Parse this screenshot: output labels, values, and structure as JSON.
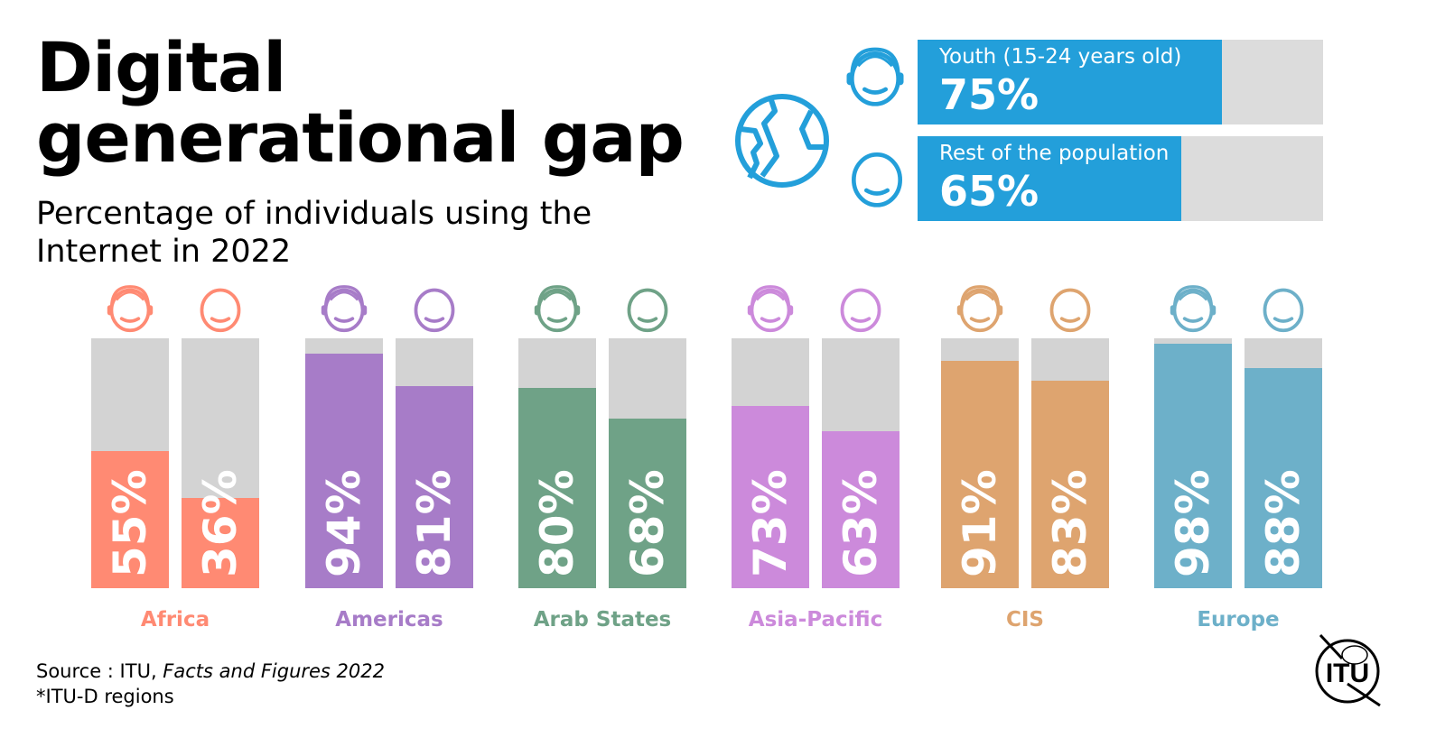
{
  "title_line1": "Digital",
  "title_line2": "generational gap",
  "subtitle": "Percentage of individuals using the Internet in 2022",
  "icons": {
    "globe": "globe-icon",
    "youth": "youth-headphones-icon",
    "rest": "person-face-icon",
    "logo": "itu-logo"
  },
  "logo_text": "ITU",
  "source_prefix": "Source : ITU, ",
  "source_title": "Facts and Figures 2022",
  "footnote": "*ITU-D regions",
  "chart_data": [
    {
      "type": "bar",
      "orientation": "horizontal",
      "ylim": [
        0,
        100
      ],
      "color": "#239FDA",
      "series": [
        {
          "name": "Youth (15-24 years old)",
          "value": 75,
          "label": "75%"
        },
        {
          "name": "Rest of the population",
          "value": 65,
          "label": "65%"
        }
      ]
    },
    {
      "type": "bar",
      "orientation": "vertical",
      "ylim": [
        0,
        100
      ],
      "categories": [
        "Africa",
        "Americas",
        "Arab States",
        "Asia-Pacific",
        "CIS",
        "Europe"
      ],
      "colors": [
        "#FF8A73",
        "#A77CC8",
        "#6FA287",
        "#CC8ADB",
        "#DEA46F",
        "#6DB0C9"
      ],
      "youth": {
        "values": [
          55,
          94,
          80,
          73,
          91,
          98
        ],
        "labels": [
          "55%",
          "94%",
          "80%",
          "73%",
          "91%",
          "98%"
        ]
      },
      "rest": {
        "values": [
          36,
          81,
          68,
          63,
          83,
          88
        ],
        "labels": [
          "36%",
          "81%",
          "68%",
          "63%",
          "83%",
          "88%"
        ]
      }
    }
  ]
}
